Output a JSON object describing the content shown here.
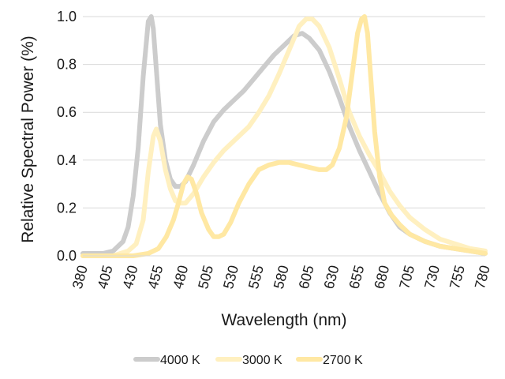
{
  "chart_data": {
    "type": "line",
    "title": "",
    "xlabel": "Wavelength (nm)",
    "ylabel": "Relative Spectral Power (%)",
    "xlim": [
      380,
      780
    ],
    "ylim": [
      0,
      1.0
    ],
    "grid": true,
    "legend_position": "bottom",
    "x_ticks": [
      "380",
      "405",
      "430",
      "455",
      "480",
      "505",
      "530",
      "555",
      "580",
      "605",
      "630",
      "655",
      "680",
      "705",
      "730",
      "755",
      "780"
    ],
    "y_ticks": [
      "0.0",
      "0.2",
      "0.4",
      "0.6",
      "0.8",
      "1.0"
    ],
    "series": [
      {
        "name": "4000 K",
        "color": "#cccccc",
        "points": [
          [
            380,
            0.01
          ],
          [
            400,
            0.01
          ],
          [
            410,
            0.02
          ],
          [
            420,
            0.06
          ],
          [
            425,
            0.12
          ],
          [
            430,
            0.25
          ],
          [
            435,
            0.45
          ],
          [
            440,
            0.75
          ],
          [
            445,
            0.98
          ],
          [
            448,
            1.0
          ],
          [
            450,
            0.95
          ],
          [
            453,
            0.78
          ],
          [
            457,
            0.55
          ],
          [
            462,
            0.4
          ],
          [
            467,
            0.32
          ],
          [
            472,
            0.29
          ],
          [
            477,
            0.29
          ],
          [
            482,
            0.31
          ],
          [
            490,
            0.38
          ],
          [
            500,
            0.48
          ],
          [
            510,
            0.56
          ],
          [
            520,
            0.61
          ],
          [
            530,
            0.65
          ],
          [
            540,
            0.69
          ],
          [
            550,
            0.74
          ],
          [
            560,
            0.79
          ],
          [
            570,
            0.84
          ],
          [
            580,
            0.88
          ],
          [
            590,
            0.92
          ],
          [
            598,
            0.93
          ],
          [
            605,
            0.91
          ],
          [
            615,
            0.86
          ],
          [
            625,
            0.77
          ],
          [
            635,
            0.66
          ],
          [
            645,
            0.54
          ],
          [
            655,
            0.44
          ],
          [
            665,
            0.35
          ],
          [
            675,
            0.26
          ],
          [
            685,
            0.18
          ],
          [
            695,
            0.12
          ],
          [
            705,
            0.09
          ],
          [
            720,
            0.06
          ],
          [
            735,
            0.04
          ],
          [
            750,
            0.03
          ],
          [
            765,
            0.02
          ],
          [
            780,
            0.01
          ]
        ]
      },
      {
        "name": "3000 K",
        "color": "#fff0c0",
        "points": [
          [
            380,
            0.0
          ],
          [
            410,
            0.0
          ],
          [
            425,
            0.02
          ],
          [
            433,
            0.05
          ],
          [
            440,
            0.15
          ],
          [
            445,
            0.35
          ],
          [
            450,
            0.5
          ],
          [
            453,
            0.53
          ],
          [
            457,
            0.48
          ],
          [
            462,
            0.36
          ],
          [
            467,
            0.28
          ],
          [
            472,
            0.23
          ],
          [
            477,
            0.22
          ],
          [
            482,
            0.22
          ],
          [
            490,
            0.26
          ],
          [
            500,
            0.33
          ],
          [
            510,
            0.39
          ],
          [
            520,
            0.44
          ],
          [
            530,
            0.48
          ],
          [
            545,
            0.54
          ],
          [
            555,
            0.6
          ],
          [
            565,
            0.67
          ],
          [
            575,
            0.76
          ],
          [
            585,
            0.86
          ],
          [
            595,
            0.96
          ],
          [
            602,
            0.99
          ],
          [
            608,
            0.99
          ],
          [
            615,
            0.96
          ],
          [
            625,
            0.87
          ],
          [
            635,
            0.74
          ],
          [
            645,
            0.6
          ],
          [
            655,
            0.5
          ],
          [
            665,
            0.42
          ],
          [
            675,
            0.35
          ],
          [
            685,
            0.27
          ],
          [
            695,
            0.21
          ],
          [
            705,
            0.16
          ],
          [
            720,
            0.11
          ],
          [
            735,
            0.07
          ],
          [
            750,
            0.05
          ],
          [
            765,
            0.03
          ],
          [
            780,
            0.02
          ]
        ]
      },
      {
        "name": "2700 K",
        "color": "#ffe8a3",
        "points": [
          [
            380,
            0.0
          ],
          [
            430,
            0.0
          ],
          [
            445,
            0.01
          ],
          [
            455,
            0.03
          ],
          [
            463,
            0.08
          ],
          [
            470,
            0.15
          ],
          [
            475,
            0.22
          ],
          [
            480,
            0.3
          ],
          [
            484,
            0.33
          ],
          [
            488,
            0.32
          ],
          [
            493,
            0.26
          ],
          [
            498,
            0.18
          ],
          [
            505,
            0.11
          ],
          [
            510,
            0.08
          ],
          [
            515,
            0.08
          ],
          [
            520,
            0.09
          ],
          [
            527,
            0.14
          ],
          [
            535,
            0.22
          ],
          [
            545,
            0.3
          ],
          [
            555,
            0.36
          ],
          [
            565,
            0.38
          ],
          [
            575,
            0.39
          ],
          [
            585,
            0.39
          ],
          [
            595,
            0.38
          ],
          [
            605,
            0.37
          ],
          [
            615,
            0.36
          ],
          [
            622,
            0.36
          ],
          [
            628,
            0.38
          ],
          [
            635,
            0.45
          ],
          [
            642,
            0.58
          ],
          [
            648,
            0.77
          ],
          [
            653,
            0.93
          ],
          [
            657,
            0.99
          ],
          [
            660,
            1.0
          ],
          [
            663,
            0.93
          ],
          [
            667,
            0.7
          ],
          [
            670,
            0.52
          ],
          [
            675,
            0.33
          ],
          [
            680,
            0.22
          ],
          [
            687,
            0.17
          ],
          [
            695,
            0.13
          ],
          [
            705,
            0.09
          ],
          [
            720,
            0.06
          ],
          [
            735,
            0.04
          ],
          [
            750,
            0.03
          ],
          [
            765,
            0.02
          ],
          [
            780,
            0.01
          ]
        ]
      }
    ]
  }
}
